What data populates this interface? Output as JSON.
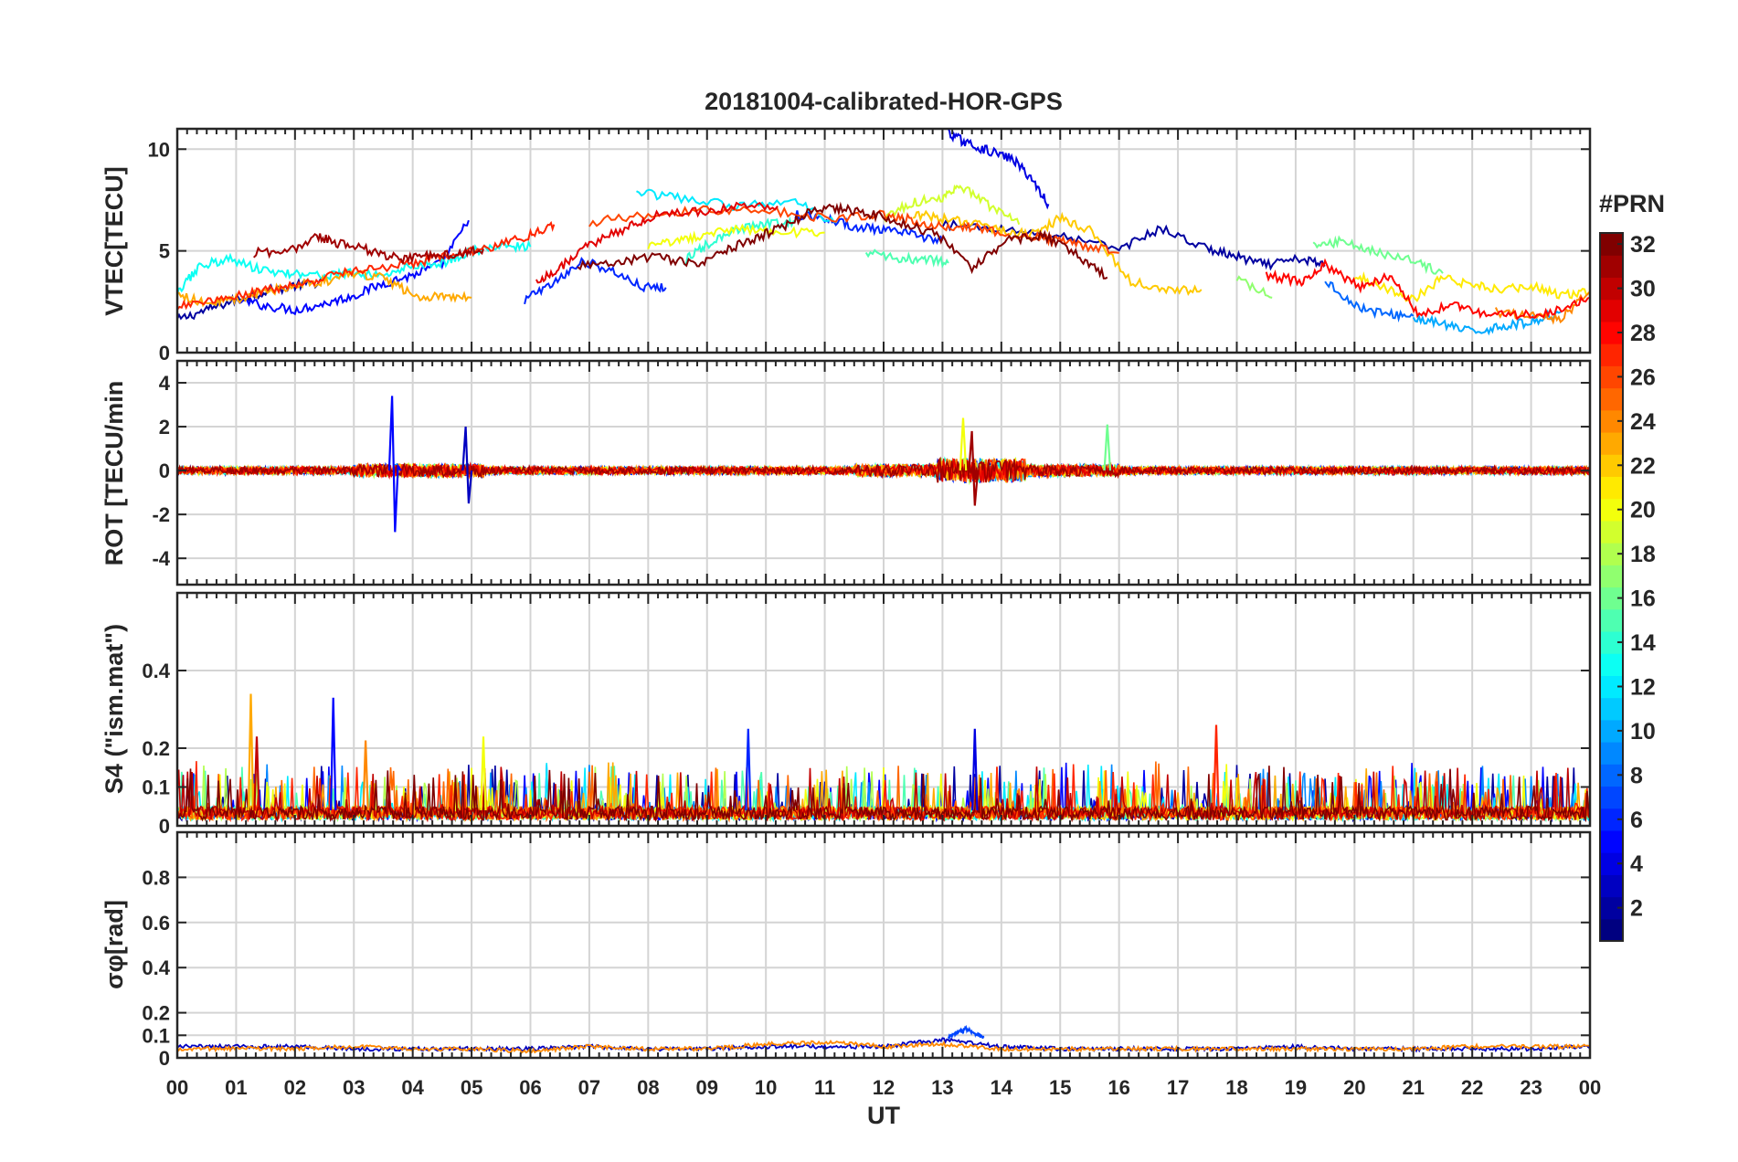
{
  "figure": {
    "title": "20181004-calibrated-HOR-GPS",
    "xlabel": "UT",
    "x_tick_labels": [
      "00",
      "01",
      "02",
      "03",
      "04",
      "05",
      "06",
      "07",
      "08",
      "09",
      "10",
      "11",
      "12",
      "13",
      "14",
      "15",
      "16",
      "17",
      "18",
      "19",
      "20",
      "21",
      "22",
      "23",
      "00"
    ]
  },
  "colorbar": {
    "label": "#PRN",
    "range": [
      1,
      32
    ],
    "tick_values": [
      2,
      4,
      6,
      8,
      10,
      12,
      14,
      16,
      18,
      20,
      22,
      24,
      26,
      28,
      30,
      32
    ],
    "tick_labels": [
      "2",
      "4",
      "6",
      "8",
      "10",
      "12",
      "14",
      "16",
      "18",
      "20",
      "22",
      "24",
      "26",
      "28",
      "30",
      "32"
    ],
    "colormap": "jet"
  },
  "chart_data": [
    {
      "type": "line",
      "panel": "vtec",
      "ylabel": "VTEC[TECU]",
      "xlim": [
        0,
        24
      ],
      "ylim": [
        0,
        11
      ],
      "y_tick_values": [
        0,
        5,
        10
      ],
      "y_tick_labels": [
        "0",
        "5",
        "10"
      ],
      "grid": true,
      "series": [
        {
          "prn": 2,
          "x": [
            0,
            0.5,
            1,
            1.5,
            2,
            2.5
          ],
          "values": [
            1.6,
            2.1,
            2.6,
            3,
            3.3,
            3.5
          ]
        },
        {
          "prn": 5,
          "x": [
            1,
            1.5,
            2,
            2.5,
            3,
            3.5,
            4,
            4.5,
            4.95
          ],
          "values": [
            2.6,
            2.3,
            2.1,
            2.4,
            2.8,
            3.4,
            3.8,
            4.4,
            6.5
          ]
        },
        {
          "prn": 6,
          "x": [
            5.9,
            6.4,
            6.9,
            7.4,
            7.9,
            8.3
          ],
          "values": [
            2.6,
            3.4,
            4.5,
            4.0,
            3.2,
            3.2
          ]
        },
        {
          "prn": 4,
          "x": [
            13.1,
            13.4,
            13.8,
            14.2,
            14.5,
            14.8
          ],
          "values": [
            10.8,
            10.3,
            9.9,
            9.5,
            8.6,
            7.3
          ]
        },
        {
          "prn": 2,
          "x": [
            13,
            14,
            15,
            16,
            16.7,
            17.5,
            18,
            18.5,
            19.1,
            19.5
          ],
          "values": [
            6.3,
            6.1,
            5.7,
            5.1,
            6.1,
            5.1,
            4.7,
            4.3,
            4.6,
            4.3
          ]
        },
        {
          "prn": 8,
          "x": [
            19.5,
            20,
            20.5,
            21
          ],
          "values": [
            3.6,
            2.3,
            1.9,
            1.8
          ]
        },
        {
          "prn": 10,
          "x": [
            21,
            21.5,
            22,
            22.5,
            23,
            23.5
          ],
          "values": [
            1.7,
            1.4,
            1.0,
            1.3,
            1.5,
            2.0
          ]
        },
        {
          "prn": 6,
          "x": [
            10.5,
            11,
            11.5,
            12,
            12.5,
            13
          ],
          "values": [
            6.8,
            6.6,
            6.2,
            6.0,
            5.8,
            5.5
          ]
        },
        {
          "prn": 12,
          "x": [
            7.8,
            8.5,
            9.5,
            10.5,
            11.2
          ],
          "values": [
            7.9,
            7.6,
            7.2,
            7.4,
            6.4
          ]
        },
        {
          "prn": 13,
          "x": [
            0,
            0.4,
            0.9,
            1.5,
            2,
            2.5,
            3,
            3.5,
            4,
            4.5,
            5,
            5.5,
            6
          ],
          "values": [
            3.0,
            4.3,
            4.6,
            4.0,
            3.9,
            3.8,
            3.9,
            3.8,
            4.3,
            4.4,
            5.0,
            5.2,
            5.2
          ]
        },
        {
          "prn": 14,
          "x": [
            8.6,
            9,
            9.5,
            10,
            10.5
          ],
          "values": [
            4.5,
            5.3,
            6.0,
            6.3,
            6.4
          ]
        },
        {
          "prn": 15,
          "x": [
            11.7,
            12.3,
            12.7,
            13.1
          ],
          "values": [
            4.9,
            4.6,
            4.6,
            4.4
          ]
        },
        {
          "prn": 16,
          "x": [
            19.3,
            19.8,
            20.3,
            21,
            21.5
          ],
          "values": [
            5.2,
            5.5,
            5.0,
            4.5,
            3.9
          ]
        },
        {
          "prn": 17,
          "x": [
            18,
            18.6
          ],
          "values": [
            3.7,
            2.7
          ]
        },
        {
          "prn": 19,
          "x": [
            12,
            12.5,
            13,
            13.3,
            13.8,
            14.3
          ],
          "values": [
            6.6,
            7.4,
            7.6,
            8.2,
            7.2,
            6.3
          ]
        },
        {
          "prn": 20,
          "x": [
            8,
            8.5,
            9,
            9.6,
            10.3,
            11
          ],
          "values": [
            5.2,
            5.5,
            5.8,
            6.1,
            5.9,
            5.9
          ]
        },
        {
          "prn": 21,
          "x": [
            20,
            20.5,
            21,
            21.5,
            22,
            22.5,
            23,
            23.5,
            24
          ],
          "values": [
            3.8,
            3.2,
            2.6,
            3.7,
            3.3,
            3.1,
            3.3,
            2.8,
            3.0
          ]
        },
        {
          "prn": 22,
          "x": [
            12.5,
            13,
            13.5,
            14,
            14.5,
            15,
            15.5,
            16.2,
            16.8,
            17.4
          ],
          "values": [
            6.8,
            6.6,
            6.4,
            6.0,
            5.8,
            6.6,
            6.0,
            3.5,
            3.1,
            3.1
          ]
        },
        {
          "prn": 23,
          "x": [
            0,
            0.5,
            1,
            1.5,
            2,
            2.5,
            3,
            3.5,
            4,
            4.5,
            5
          ],
          "values": [
            2.9,
            2.4,
            2.6,
            3.0,
            3.3,
            3.5,
            3.9,
            3.7,
            2.8,
            2.7,
            2.7
          ]
        },
        {
          "prn": 24,
          "x": [
            22.4,
            23,
            23.5,
            24
          ],
          "values": [
            2.0,
            1.8,
            1.7,
            3.0
          ]
        },
        {
          "prn": 26,
          "x": [
            7,
            8,
            9,
            10,
            11,
            12,
            12.5,
            13,
            13.5,
            14.2,
            14.8,
            15.3,
            16
          ],
          "values": [
            6.4,
            6.8,
            7.0,
            7.0,
            6.6,
            6.8,
            6.5,
            6.2,
            6.2,
            5.8,
            5.6,
            5.3,
            4.9
          ]
        },
        {
          "prn": 27,
          "x": [
            0,
            0.6,
            1.2,
            1.8,
            2.4,
            3,
            3.6,
            4.2,
            4.8,
            5.4,
            6,
            6.4
          ],
          "values": [
            2.3,
            2.6,
            2.9,
            3.2,
            3.6,
            4.0,
            4.2,
            4.5,
            4.9,
            5.2,
            5.8,
            6.3
          ]
        },
        {
          "prn": 28,
          "x": [
            18.5,
            19.1,
            19.5,
            20.1,
            20.6,
            21.1,
            21.7,
            22.2,
            22.8,
            23.4,
            24
          ],
          "values": [
            3.8,
            3.5,
            4.3,
            3.2,
            3.8,
            1.8,
            2.4,
            1.9,
            1.8,
            2.0,
            2.7
          ]
        },
        {
          "prn": 29,
          "x": [
            6.1,
            6.5,
            7,
            7.6,
            8.1,
            8.8,
            9.5,
            10.2
          ],
          "values": [
            3.5,
            4.2,
            5.3,
            6.1,
            6.7,
            6.9,
            7.2,
            7.2
          ]
        },
        {
          "prn": 31,
          "x": [
            1.3,
            1.9,
            2.4,
            2.8,
            3.3,
            3.8,
            4.3,
            4.8,
            5.2
          ],
          "values": [
            4.9,
            5.0,
            5.7,
            5.3,
            5.0,
            4.6,
            4.8,
            4.8,
            5.1
          ]
        },
        {
          "prn": 32,
          "x": [
            6.8,
            7.5,
            8.2,
            8.8,
            9.3,
            9.8,
            10.3,
            10.8,
            11.3,
            11.8,
            12.3,
            12.9,
            13.5,
            14.1,
            14.7,
            15.3,
            15.8
          ],
          "values": [
            4.2,
            4.5,
            4.7,
            4.3,
            5.0,
            5.6,
            6.2,
            7.0,
            7.1,
            6.8,
            6.4,
            5.8,
            4.2,
            5.5,
            5.8,
            4.8,
            3.7
          ]
        }
      ]
    },
    {
      "type": "line",
      "panel": "rot",
      "ylabel": "ROT [TECU/min",
      "xlim": [
        0,
        24
      ],
      "ylim": [
        -5.2,
        5
      ],
      "y_tick_values": [
        -4,
        -2,
        0,
        2,
        4
      ],
      "y_tick_labels": [
        "-4",
        "-2",
        "0",
        "2",
        "4"
      ],
      "grid": true,
      "series": [
        {
          "prn": 5,
          "x": [
            3.6,
            3.65,
            3.7,
            3.75,
            3.8
          ],
          "values": [
            0,
            3.4,
            -2.8,
            0.2,
            0
          ]
        },
        {
          "prn": 3,
          "x": [
            4.85,
            4.9,
            4.95,
            5.0
          ],
          "values": [
            0,
            2.0,
            -1.5,
            0
          ]
        },
        {
          "prn": 20,
          "x": [
            13.3,
            13.35,
            13.4
          ],
          "values": [
            0,
            2.4,
            0
          ]
        },
        {
          "prn": 16,
          "x": [
            15.75,
            15.8,
            15.85
          ],
          "values": [
            0,
            2.1,
            0
          ]
        },
        {
          "prn": 31,
          "x": [
            13.45,
            13.5,
            13.55,
            13.6
          ],
          "values": [
            0,
            1.8,
            -1.6,
            0
          ]
        }
      ]
    },
    {
      "type": "line",
      "panel": "s4",
      "ylabel": "S4 (\"ism.mat\")",
      "xlim": [
        0,
        24
      ],
      "ylim": [
        0,
        0.6
      ],
      "y_tick_values": [
        0,
        0.1,
        0.2,
        0.4
      ],
      "y_tick_labels": [
        "0",
        "0.1",
        "0.2",
        "0.4"
      ],
      "grid": true,
      "series": [
        {
          "prn": 23,
          "x": [
            1.25
          ],
          "values": [
            0.34
          ]
        },
        {
          "prn": 5,
          "x": [
            2.65
          ],
          "values": [
            0.33
          ]
        },
        {
          "prn": 30,
          "x": [
            1.35
          ],
          "values": [
            0.23
          ]
        },
        {
          "prn": 27,
          "x": [
            17.65
          ],
          "values": [
            0.26
          ]
        },
        {
          "prn": 6,
          "x": [
            9.7
          ],
          "values": [
            0.25
          ]
        },
        {
          "prn": 4,
          "x": [
            13.55
          ],
          "values": [
            0.25
          ]
        },
        {
          "prn": 20,
          "x": [
            5.2
          ],
          "values": [
            0.23
          ]
        },
        {
          "prn": 24,
          "x": [
            3.2
          ],
          "values": [
            0.22
          ]
        }
      ]
    },
    {
      "type": "line",
      "panel": "sigma_phi",
      "ylabel": "σφ[rad]",
      "xlim": [
        0,
        24
      ],
      "ylim": [
        0,
        1
      ],
      "y_tick_values": [
        0,
        0.1,
        0.2,
        0.4,
        0.6,
        0.8
      ],
      "y_tick_labels": [
        "0",
        "0.1",
        "0.2",
        "0.4",
        "0.6",
        "0.8"
      ],
      "grid": true,
      "series": [
        {
          "prn": 7,
          "x": [
            13.1,
            13.4,
            13.7
          ],
          "values": [
            0.09,
            0.13,
            0.09
          ]
        },
        {
          "prn": 3,
          "x": [
            0,
            1,
            2,
            3,
            4,
            5,
            6,
            7,
            8,
            9,
            10,
            11,
            12,
            13,
            14,
            15,
            16,
            17,
            18,
            19,
            20,
            21,
            22,
            23,
            24
          ],
          "values": [
            0.05,
            0.05,
            0.05,
            0.04,
            0.04,
            0.04,
            0.04,
            0.05,
            0.04,
            0.04,
            0.05,
            0.05,
            0.05,
            0.08,
            0.05,
            0.04,
            0.04,
            0.04,
            0.04,
            0.05,
            0.04,
            0.04,
            0.04,
            0.04,
            0.05
          ]
        },
        {
          "prn": 24,
          "x": [
            0,
            1,
            2,
            3,
            4,
            5,
            6,
            7,
            8,
            9,
            10,
            11,
            12,
            13,
            14,
            15,
            16,
            17,
            18,
            19,
            20,
            21,
            22,
            23,
            24
          ],
          "values": [
            0.04,
            0.04,
            0.04,
            0.05,
            0.04,
            0.04,
            0.03,
            0.05,
            0.04,
            0.04,
            0.06,
            0.07,
            0.05,
            0.06,
            0.04,
            0.04,
            0.04,
            0.04,
            0.04,
            0.04,
            0.04,
            0.04,
            0.05,
            0.05,
            0.05
          ]
        }
      ]
    }
  ]
}
